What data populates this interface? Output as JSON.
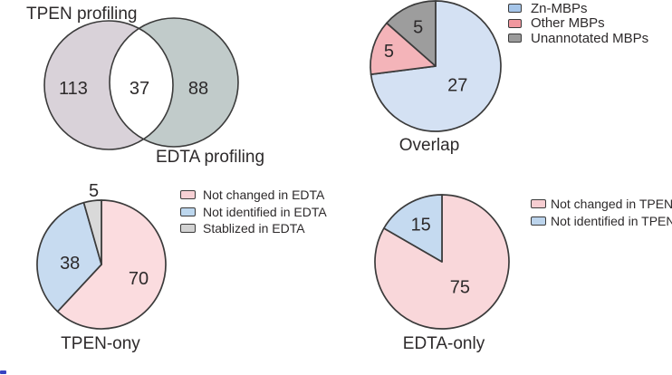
{
  "figure": {
    "background": "#ffffff",
    "text_color": "#2d2a2b",
    "outline_color": "#3b3b3b",
    "artifact_color": "#3743c2"
  },
  "chart_data": [
    {
      "id": "venn-profiling",
      "type": "venn",
      "title_left": "TPEN profiling",
      "title_right": "EDTA profiling",
      "sets": [
        {
          "label": "TPEN profiling",
          "value": 113,
          "color": "#d9d2d9"
        },
        {
          "label": "EDTA profiling",
          "value": 88,
          "color": "#c1cbca"
        }
      ],
      "overlap_value": 37,
      "overlap_color": "#ffffff"
    },
    {
      "id": "overlap",
      "type": "pie",
      "title": "Overlap",
      "total": 37,
      "start_angle_deg": 0,
      "clockwise": true,
      "legend_position": "right",
      "slices": [
        {
          "label": "Zn-MBPs",
          "value": 27,
          "color": "#d4e1f3",
          "legend_color": "#a5c5e9",
          "label_r": 0.45
        },
        {
          "label": "Other MBPs",
          "value": 5,
          "color": "#f4b4b9",
          "legend_color": "#f1979e",
          "label_r": 0.75
        },
        {
          "label": "Unannotated MBPs",
          "value": 5,
          "color": "#9d9d9d",
          "legend_color": "#9b9b9b",
          "label_r": 0.65
        }
      ]
    },
    {
      "id": "tpen-only",
      "type": "pie",
      "title": "TPEN-ony",
      "total": 113,
      "start_angle_deg": 0,
      "clockwise": true,
      "legend_position": "right",
      "slices": [
        {
          "label": "Not changed in EDTA",
          "value": 70,
          "color": "#fbdcdf",
          "legend_color": "#f7d0d4",
          "label_r": 0.62
        },
        {
          "label": "Not identified in EDTA",
          "value": 38,
          "color": "#c7dbf0",
          "legend_color": "#bdd7ee",
          "label_r": 0.49,
          "label_angle": 272
        },
        {
          "label": "Stablized in EDTA",
          "value": 5,
          "color": "#d9d9d9",
          "legend_color": "#d2d2d2",
          "label_r": 1.15,
          "label_angle": 354
        }
      ]
    },
    {
      "id": "edta-only",
      "type": "pie",
      "title": "EDTA-only",
      "total": 90,
      "start_angle_deg": 0,
      "clockwise": true,
      "legend_position": "right",
      "slices": [
        {
          "label": "Not changed in TPEN",
          "value": 75,
          "color": "#f9d7da",
          "legend_color": "#f7cdd1",
          "label_r": 0.47,
          "label_angle": 145
        },
        {
          "label": "Not identified in TPEN",
          "value": 15,
          "color": "#c5daf0",
          "legend_color": "#bcd4ec",
          "label_r": 0.63
        }
      ]
    }
  ]
}
